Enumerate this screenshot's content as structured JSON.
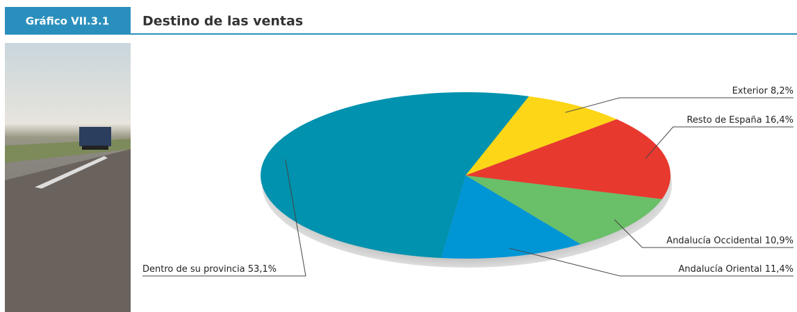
{
  "header": {
    "label": "Gráfico VII.3.1"
  },
  "chart_data": {
    "type": "pie",
    "title": "Destino de las ventas",
    "categories": [
      "Exterior",
      "Resto de España",
      "Andalucía Occidental",
      "Andalucía Oriental",
      "Dentro de su provincia"
    ],
    "values": [
      8.2,
      16.4,
      10.9,
      11.4,
      53.1
    ],
    "value_labels": [
      "8,2%",
      "16,4%",
      "10,9%",
      "11,4%",
      "53,1%"
    ],
    "colors": [
      "#fcd617",
      "#e8392f",
      "#6abf69",
      "#0096d6",
      "#0092ae"
    ]
  }
}
